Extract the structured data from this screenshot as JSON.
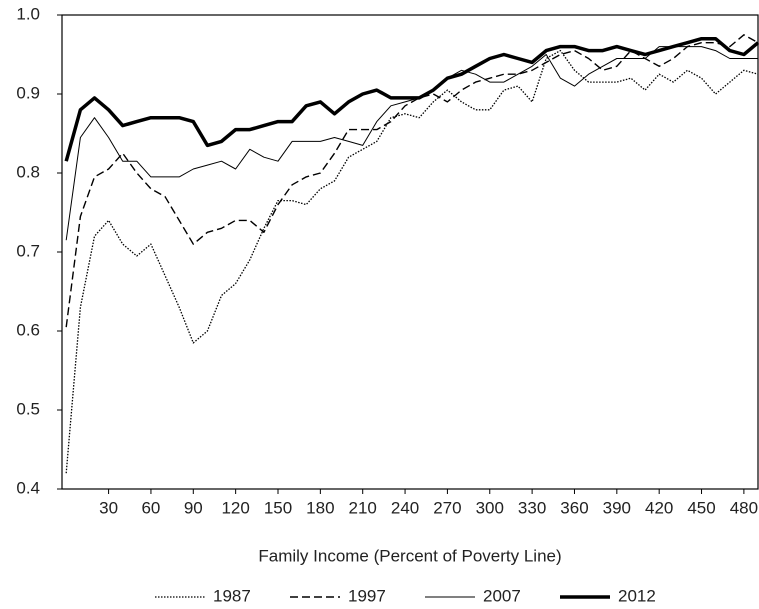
{
  "chart_data": {
    "type": "line",
    "x_label": "Family Income (Percent of Poverty Line)",
    "x": [
      0,
      10,
      20,
      30,
      40,
      50,
      60,
      70,
      80,
      90,
      100,
      110,
      120,
      130,
      140,
      150,
      160,
      170,
      180,
      190,
      200,
      210,
      220,
      230,
      240,
      250,
      260,
      270,
      280,
      290,
      300,
      310,
      320,
      330,
      340,
      350,
      360,
      370,
      380,
      390,
      400,
      410,
      420,
      430,
      440,
      450,
      460,
      470,
      480,
      490
    ],
    "xlim": [
      -3,
      490
    ],
    "xticks": [
      30,
      60,
      90,
      120,
      150,
      180,
      210,
      240,
      270,
      300,
      330,
      360,
      390,
      420,
      450,
      480
    ],
    "ylim": [
      0.4,
      1.0
    ],
    "yticks": [
      0.4,
      0.5,
      0.6,
      0.7,
      0.8,
      0.9,
      {
        "value": 1,
        "label": "1.0"
      }
    ],
    "grid": false,
    "legend": "bottom",
    "series": [
      {
        "name": "1987",
        "color": "#000000",
        "style": "dotted",
        "values": [
          0.42,
          0.63,
          0.72,
          0.74,
          0.71,
          0.695,
          0.71,
          0.67,
          0.63,
          0.585,
          0.6,
          0.645,
          0.66,
          0.69,
          0.73,
          0.765,
          0.765,
          0.76,
          0.78,
          0.79,
          0.82,
          0.83,
          0.84,
          0.87,
          0.875,
          0.87,
          0.89,
          0.905,
          0.89,
          0.88,
          0.88,
          0.905,
          0.91,
          0.89,
          0.945,
          0.955,
          0.93,
          0.915,
          0.915,
          0.915,
          0.92,
          0.905,
          0.925,
          0.915,
          0.93,
          0.92,
          0.9,
          0.915,
          0.93,
          0.925
        ]
      },
      {
        "name": "1997",
        "color": "#000000",
        "style": "dashed",
        "values": [
          0.605,
          0.745,
          0.795,
          0.805,
          0.825,
          0.8,
          0.78,
          0.77,
          0.74,
          0.71,
          0.725,
          0.73,
          0.74,
          0.74,
          0.725,
          0.76,
          0.785,
          0.795,
          0.8,
          0.825,
          0.855,
          0.855,
          0.855,
          0.865,
          0.885,
          0.895,
          0.9,
          0.89,
          0.905,
          0.915,
          0.92,
          0.925,
          0.925,
          0.93,
          0.94,
          0.95,
          0.955,
          0.945,
          0.93,
          0.935,
          0.955,
          0.945,
          0.935,
          0.945,
          0.96,
          0.965,
          0.965,
          0.96,
          0.975,
          0.965
        ]
      },
      {
        "name": "2007",
        "color": "#000000",
        "style": "thin",
        "values": [
          0.715,
          0.845,
          0.87,
          0.845,
          0.815,
          0.815,
          0.795,
          0.795,
          0.795,
          0.805,
          0.81,
          0.815,
          0.805,
          0.83,
          0.82,
          0.815,
          0.84,
          0.84,
          0.84,
          0.845,
          0.84,
          0.835,
          0.865,
          0.885,
          0.89,
          0.895,
          0.905,
          0.92,
          0.93,
          0.925,
          0.915,
          0.915,
          0.925,
          0.935,
          0.95,
          0.92,
          0.91,
          0.925,
          0.935,
          0.945,
          0.945,
          0.945,
          0.96,
          0.96,
          0.96,
          0.96,
          0.955,
          0.945,
          0.945,
          0.945
        ]
      },
      {
        "name": "2012",
        "color": "#000000",
        "style": "thick",
        "values": [
          0.815,
          0.88,
          0.895,
          0.88,
          0.86,
          0.865,
          0.87,
          0.87,
          0.87,
          0.865,
          0.835,
          0.84,
          0.855,
          0.855,
          0.86,
          0.865,
          0.865,
          0.885,
          0.89,
          0.875,
          0.89,
          0.9,
          0.905,
          0.895,
          0.895,
          0.895,
          0.905,
          0.92,
          0.925,
          0.935,
          0.945,
          0.95,
          0.945,
          0.94,
          0.955,
          0.96,
          0.96,
          0.955,
          0.955,
          0.96,
          0.955,
          0.95,
          0.955,
          0.96,
          0.965,
          0.97,
          0.97,
          0.955,
          0.95,
          0.965
        ]
      }
    ]
  }
}
